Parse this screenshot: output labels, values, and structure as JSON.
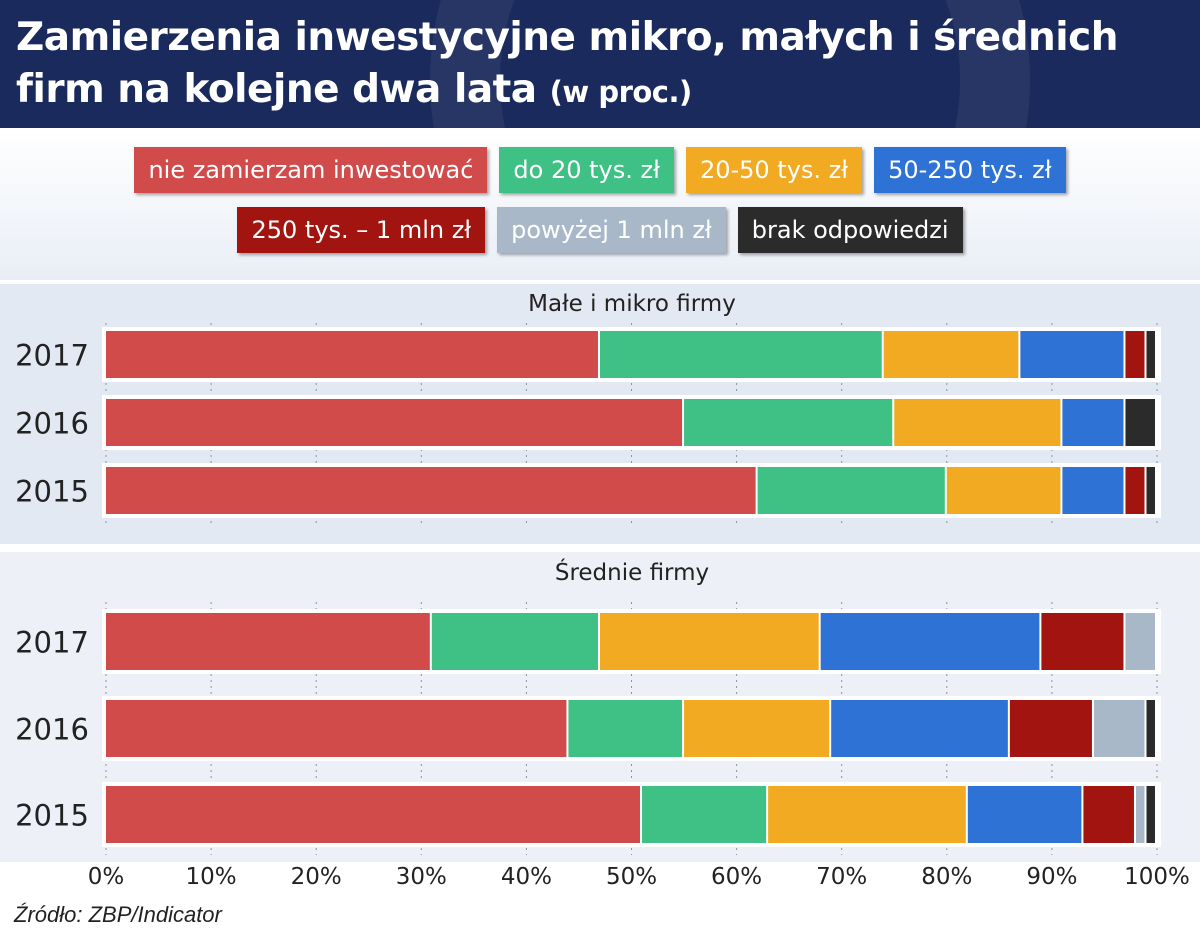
{
  "header": {
    "title": "Zamierzenia inwestycyjne mikro, małych i średnich firm na kolejne dwa lata",
    "unit": "(w proc.)"
  },
  "source": "Źródło: ZBP/Indicator",
  "chart_data": [
    {
      "type": "bar",
      "orientation": "horizontal",
      "stacked": true,
      "title": "Małe i mikro firmy",
      "categories": [
        "2017",
        "2016",
        "2015"
      ],
      "xlim": [
        0,
        100
      ],
      "series": [
        {
          "name": "nie zamierzam inwestować",
          "color": "#d24b4b",
          "values": [
            47,
            55,
            62
          ]
        },
        {
          "name": "do 20 tys. zł",
          "color": "#3fc085",
          "values": [
            27,
            20,
            18
          ]
        },
        {
          "name": "20-50 tys. zł",
          "color": "#f2aa22",
          "values": [
            13,
            16,
            11
          ]
        },
        {
          "name": "50-250 tys. zł",
          "color": "#2f72d6",
          "values": [
            10,
            6,
            6
          ]
        },
        {
          "name": "250 tys. – 1 mln zł",
          "color": "#a11410",
          "values": [
            2,
            0,
            2
          ]
        },
        {
          "name": "powyżej 1 mln zł",
          "color": "#a9b8c8",
          "values": [
            0,
            0,
            0
          ]
        },
        {
          "name": "brak odpowiedzi",
          "color": "#2b2b2b",
          "values": [
            1,
            3,
            1
          ]
        }
      ]
    },
    {
      "type": "bar",
      "orientation": "horizontal",
      "stacked": true,
      "title": "Średnie firmy",
      "categories": [
        "2017",
        "2016",
        "2015"
      ],
      "xlim": [
        0,
        100
      ],
      "series": [
        {
          "name": "nie zamierzam inwestować",
          "color": "#d24b4b",
          "values": [
            31,
            44,
            51
          ]
        },
        {
          "name": "do 20 tys. zł",
          "color": "#3fc085",
          "values": [
            16,
            11,
            12
          ]
        },
        {
          "name": "20-50 tys. zł",
          "color": "#f2aa22",
          "values": [
            21,
            14,
            19
          ]
        },
        {
          "name": "50-250 tys. zł",
          "color": "#2f72d6",
          "values": [
            21,
            17,
            11
          ]
        },
        {
          "name": "250 tys. – 1 mln zł",
          "color": "#a11410",
          "values": [
            8,
            8,
            5
          ]
        },
        {
          "name": "powyżej 1 mln zł",
          "color": "#a9b8c8",
          "values": [
            3,
            5,
            1
          ]
        },
        {
          "name": "brak odpowiedzi",
          "color": "#2b2b2b",
          "values": [
            0,
            1,
            1
          ]
        }
      ]
    }
  ],
  "axis": {
    "ticks": [
      "0%",
      "10%",
      "20%",
      "30%",
      "40%",
      "50%",
      "60%",
      "70%",
      "80%",
      "90%",
      "100%"
    ]
  }
}
